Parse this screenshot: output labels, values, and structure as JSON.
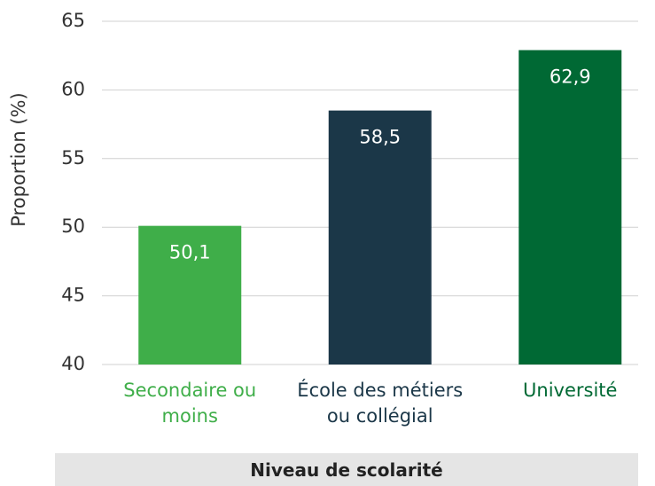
{
  "chart_data": {
    "type": "bar",
    "categories": [
      "Secondaire ou moins",
      "École des métiers ou collégial",
      "Université"
    ],
    "values": [
      50.1,
      58.5,
      62.9
    ],
    "value_labels": [
      "50,1",
      "58,5",
      "62,9"
    ],
    "colors": [
      "#3fae49",
      "#1b3748",
      "#006934"
    ],
    "ylabel": "Proportion (%)",
    "xlabel": "Niveau de scolarité",
    "ylim": [
      40,
      65
    ],
    "yticks": [
      40,
      45,
      50,
      55,
      60,
      65
    ],
    "grid": true
  }
}
